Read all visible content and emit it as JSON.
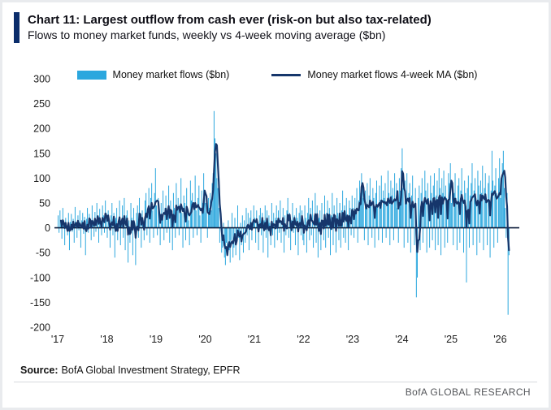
{
  "header": {
    "title": "Chart 11: Largest outflow from cash ever (risk-on but also tax-related)",
    "subtitle": "Flows to money market funds, weekly vs 4-week moving average ($bn)"
  },
  "footer": {
    "source_label": "Source:",
    "source_text": "BofA Global Investment Strategy, EPFR",
    "brand": "BofA GLOBAL RESEARCH"
  },
  "chart_data": {
    "type": "bar",
    "title": "Flows to money market funds, weekly vs 4-week moving average ($bn)",
    "x_start_year": 2017,
    "points_per_year": 52,
    "x_ticks": [
      "'17",
      "'18",
      "'19",
      "'20",
      "'21",
      "'22",
      "'23",
      "'24",
      "'25",
      "'26"
    ],
    "y_axis": {
      "min": -200,
      "max": 300,
      "tick_step": 50,
      "ticks": [
        300,
        250,
        200,
        150,
        100,
        50,
        0,
        -50,
        -100,
        -150,
        -200
      ]
    },
    "grid": "off",
    "legend_position": "top",
    "legend": [
      {
        "label": "Money market flows ($bn)",
        "type": "bar",
        "color": "#2BA7DE"
      },
      {
        "label": "Money market flows 4-week MA ($bn)",
        "type": "line",
        "color": "#16366B"
      }
    ],
    "series": [
      {
        "name": "Money market flows ($bn)",
        "type": "bar",
        "color": "#2BA7DE",
        "values": [
          25,
          -10,
          35,
          8,
          -22,
          40,
          15,
          -35,
          20,
          5,
          -15,
          30,
          -45,
          12,
          28,
          -8,
          18,
          -30,
          42,
          10,
          -20,
          25,
          -5,
          35,
          -40,
          15,
          30,
          -12,
          22,
          -55,
          18,
          40,
          -10,
          28,
          8,
          -25,
          45,
          15,
          -18,
          32,
          -8,
          50,
          20,
          -30,
          38,
          12,
          -15,
          45,
          25,
          -10,
          55,
          30,
          -20,
          35,
          10,
          -40,
          25,
          50,
          -15,
          30,
          -60,
          20,
          40,
          -25,
          15,
          55,
          -35,
          10,
          45,
          -20,
          60,
          -45,
          25,
          35,
          -70,
          15,
          -30,
          50,
          20,
          -55,
          40,
          10,
          -75,
          30,
          45,
          -20,
          60,
          25,
          -40,
          35,
          15,
          -25,
          55,
          70,
          -15,
          40,
          80,
          -30,
          60,
          90,
          35,
          -20,
          70,
          120,
          45,
          -15,
          60,
          30,
          -35,
          50,
          20,
          75,
          -25,
          40,
          65,
          -10,
          35,
          85,
          -30,
          55,
          25,
          -45,
          70,
          40,
          -20,
          90,
          35,
          60,
          -15,
          45,
          100,
          30,
          -40,
          65,
          50,
          -25,
          80,
          40,
          15,
          -35,
          95,
          55,
          70,
          -20,
          45,
          105,
          35,
          -15,
          60,
          85,
          25,
          -30,
          75,
          50,
          110,
          65,
          50,
          30,
          -20,
          60,
          40,
          70,
          35,
          90,
          110,
          235,
          180,
          150,
          100,
          80,
          40,
          -30,
          20,
          -50,
          -40,
          10,
          -60,
          -75,
          -30,
          -55,
          15,
          -45,
          -70,
          -25,
          30,
          -60,
          -40,
          20,
          -55,
          -30,
          45,
          -20,
          -65,
          10,
          -35,
          25,
          -50,
          15,
          -30,
          40,
          -15,
          30,
          -45,
          20,
          35,
          -25,
          10,
          45,
          20,
          -30,
          35,
          10,
          -45,
          25,
          40,
          -15,
          30,
          -50,
          15,
          45,
          -20,
          35,
          -60,
          25,
          10,
          -35,
          50,
          -15,
          30,
          -40,
          20,
          45,
          -25,
          35,
          -10,
          55,
          -30,
          15,
          40,
          -50,
          25,
          -15,
          35,
          60,
          -20,
          30,
          -45,
          15,
          50,
          -10,
          25,
          -35,
          40,
          20,
          -55,
          30,
          45,
          -15,
          35,
          -25,
          -35,
          45,
          20,
          -50,
          30,
          60,
          -25,
          40,
          -15,
          55,
          -40,
          25,
          70,
          -30,
          45,
          -60,
          20,
          35,
          -45,
          50,
          15,
          -25,
          65,
          -40,
          30,
          55,
          -20,
          40,
          -55,
          25,
          70,
          -35,
          45,
          15,
          -50,
          60,
          30,
          -25,
          50,
          -40,
          35,
          75,
          -20,
          45,
          -30,
          60,
          25,
          -45,
          55,
          40,
          -15,
          65,
          40,
          -20,
          60,
          35,
          80,
          -30,
          55,
          95,
          70,
          110,
          85,
          60,
          -25,
          75,
          45,
          90,
          -35,
          65,
          100,
          50,
          -20,
          80,
          60,
          -40,
          70,
          95,
          45,
          -25,
          85,
          55,
          105,
          -30,
          75,
          60,
          90,
          -20,
          50,
          115,
          70,
          -35,
          95,
          65,
          80,
          -25,
          110,
          55,
          90,
          40,
          -30,
          100,
          75,
          120,
          160,
          80,
          -40,
          95,
          60,
          110,
          -30,
          70,
          90,
          -50,
          65,
          105,
          45,
          -35,
          80,
          -140,
          -100,
          60,
          85,
          -45,
          70,
          100,
          -30,
          55,
          115,
          75,
          -50,
          90,
          60,
          -40,
          105,
          70,
          -25,
          85,
          110,
          -45,
          65,
          95,
          -35,
          120,
          80,
          -55,
          100,
          70,
          115,
          -40,
          85,
          60,
          -30,
          110,
          90,
          130,
          50,
          90,
          -35,
          70,
          110,
          60,
          -45,
          85,
          100,
          -30,
          75,
          120,
          55,
          -50,
          95,
          70,
          -110,
          80,
          105,
          -40,
          65,
          90,
          130,
          -35,
          75,
          100,
          60,
          -55,
          115,
          85,
          -30,
          95,
          70,
          125,
          -45,
          80,
          110,
          60,
          -35,
          90,
          105,
          -60,
          75,
          155,
          95,
          -40,
          85,
          120,
          70,
          -30,
          100,
          140,
          60,
          95,
          130,
          155,
          80,
          40,
          -20,
          70,
          -175,
          -55
        ]
      },
      {
        "name": "Money market flows 4-week MA ($bn)",
        "type": "line",
        "color": "#16366B",
        "window": 4
      }
    ]
  }
}
